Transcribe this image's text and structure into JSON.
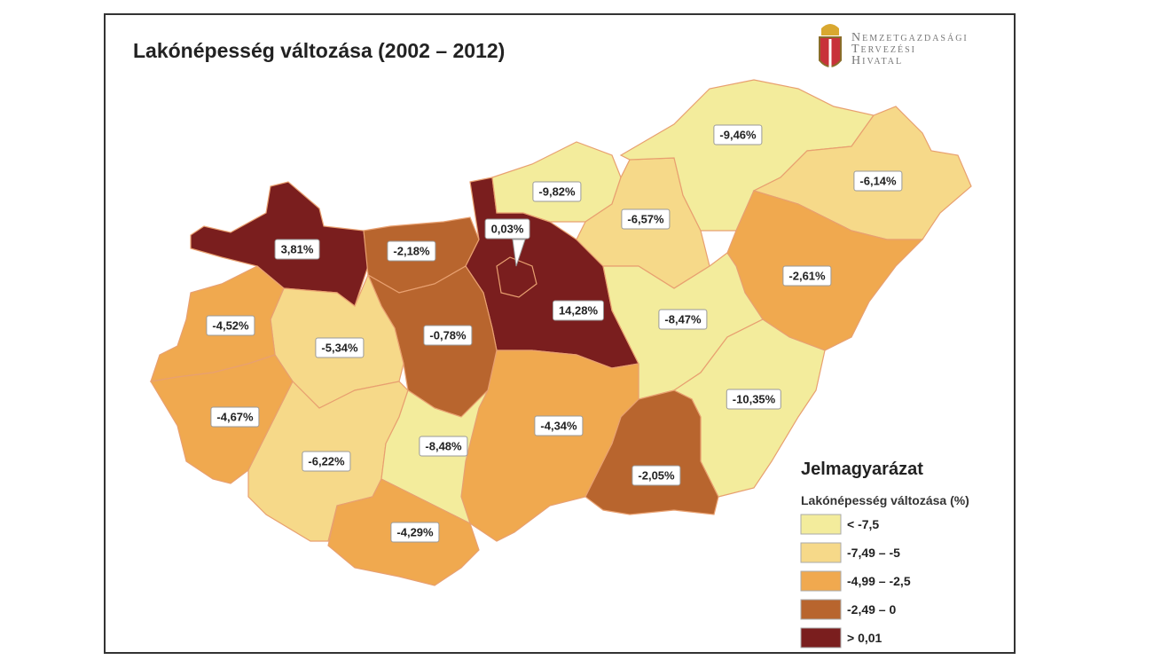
{
  "header": {
    "title": "Lakónépesség változása (2002 – 2012)"
  },
  "logo": {
    "lines": [
      "Nemzetgazdasági",
      "Tervezési",
      "Hivatal"
    ]
  },
  "regions": [
    {
      "label": "3,81%"
    },
    {
      "label": "-2,18%"
    },
    {
      "label": "14,28%"
    },
    {
      "label": "0,03%"
    },
    {
      "label": "-9,82%"
    },
    {
      "label": "-6,57%"
    },
    {
      "label": "-9,46%"
    },
    {
      "label": "-6,14%"
    },
    {
      "label": "-2,61%"
    },
    {
      "label": "-8,47%"
    },
    {
      "label": "-10,35%"
    },
    {
      "label": "-2,05%"
    },
    {
      "label": "-4,34%"
    },
    {
      "label": "-0,78%"
    },
    {
      "label": "-5,34%"
    },
    {
      "label": "-4,52%"
    },
    {
      "label": "-4,67%"
    },
    {
      "label": "-6,22%"
    },
    {
      "label": "-8,48%"
    },
    {
      "label": "-4,29%"
    }
  ],
  "legend": {
    "title": "Jelmagyarázat",
    "subtitle": "Lakónépesség változása (%)",
    "items": [
      "< -7,5",
      "-7,49 – -5",
      "-4,99 – -2,5",
      "-2,49 – 0",
      "> 0,01"
    ]
  }
}
